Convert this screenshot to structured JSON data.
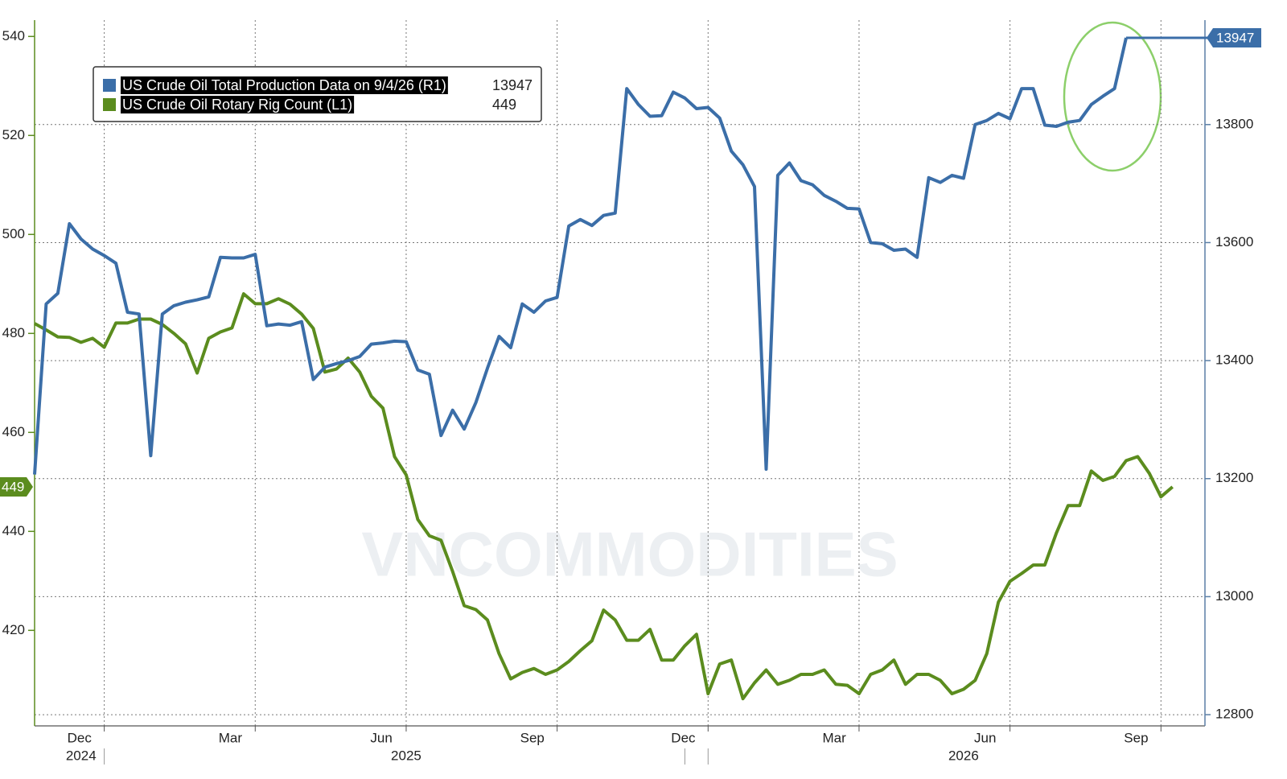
{
  "chart_data": {
    "type": "line",
    "watermark": "VNCOMMODITIES",
    "categories": [
      null,
      null,
      null,
      null,
      "Dec",
      null,
      null,
      null,
      null,
      null,
      null,
      null,
      null,
      null,
      null,
      null,
      null,
      "Mar",
      null,
      null,
      null,
      null,
      null,
      null,
      null,
      null,
      null,
      null,
      null,
      null,
      "Jun",
      null,
      null,
      null,
      null,
      null,
      null,
      null,
      null,
      null,
      null,
      null,
      null,
      "Sep",
      null,
      null,
      null,
      null,
      null,
      null,
      null,
      null,
      null,
      null,
      null,
      null,
      "Dec",
      null,
      null,
      null,
      null,
      null,
      null,
      null,
      null,
      null,
      null,
      null,
      null,
      "Mar",
      null,
      null,
      null,
      null,
      null,
      null,
      null,
      null,
      null,
      null,
      null,
      null,
      "Jun",
      null,
      null,
      null,
      null,
      null,
      null,
      null,
      null,
      null,
      null,
      null,
      null,
      "Sep",
      null,
      null,
      null
    ],
    "category_years": [
      null,
      null,
      null,
      null,
      "2024",
      null,
      null,
      null,
      null,
      null,
      null,
      null,
      null,
      null,
      null,
      null,
      null,
      null,
      null,
      null,
      null,
      null,
      null,
      null,
      null,
      null,
      null,
      null,
      null,
      null,
      null,
      null,
      "2025",
      null,
      null,
      null,
      null,
      null,
      null,
      null,
      null,
      null,
      null,
      null,
      null,
      null,
      null,
      null,
      null,
      null,
      null,
      null,
      null,
      null,
      null,
      null,
      null,
      null,
      null,
      null,
      null,
      null,
      null,
      null,
      null,
      null,
      null,
      null,
      null,
      null,
      null,
      null,
      null,
      null,
      null,
      null,
      null,
      null,
      null,
      null,
      "2026",
      null,
      null,
      null,
      null,
      null,
      null,
      null,
      null,
      null,
      null,
      null,
      null,
      null,
      null,
      null,
      null,
      null,
      null
    ],
    "series": [
      {
        "name": "US Crude Oil Total Production Data on 9/4/26 (R1)",
        "color": "#3b6ea8",
        "axis": "y2",
        "values": [
          13207,
          13496,
          13514,
          13632,
          13606,
          13589,
          13578,
          13565,
          13482,
          13479,
          13239,
          13479,
          13493,
          13499,
          13503,
          13508,
          13575,
          13574,
          13574,
          13580,
          13459,
          13462,
          13460,
          13466,
          13368,
          13389,
          13395,
          13400,
          13407,
          13428,
          13430,
          13433,
          13432,
          13384,
          13377,
          13273,
          13316,
          13284,
          13329,
          13387,
          13441,
          13422,
          13496,
          13482,
          13501,
          13507,
          13628,
          13639,
          13629,
          13646,
          13650,
          13861,
          13834,
          13814,
          13815,
          13855,
          13845,
          13827,
          13829,
          13811,
          13755,
          13732,
          13695,
          13216,
          13714,
          13735,
          13705,
          13698,
          13680,
          13670,
          13658,
          13657,
          13600,
          13598,
          13587,
          13589,
          13575,
          13710,
          13702,
          13714,
          13709,
          13800,
          13807,
          13819,
          13810,
          13861,
          13861,
          13799,
          13797,
          13804,
          13807,
          13834,
          13848,
          13861,
          13947,
          null,
          null,
          null,
          null
        ]
      },
      {
        "name": "US Crude Oil Rotary Rig Count (L1)",
        "color": "#5b8c1e",
        "axis": "y",
        "values": [
          482.0,
          480.7,
          479.3,
          479.2,
          478.2,
          479.0,
          477.2,
          482.1,
          482.1,
          482.9,
          482.9,
          481.8,
          480.0,
          477.9,
          472.0,
          479.0,
          480.3,
          481.1,
          488.0,
          486.0,
          486.0,
          487.0,
          485.9,
          483.9,
          481.0,
          472.2,
          472.8,
          475.0,
          472.2,
          467.3,
          464.9,
          455.1,
          451.4,
          442.4,
          439.1,
          438.2,
          431.9,
          425.0,
          424.2,
          422.1,
          415.3,
          410.2,
          411.5,
          412.3,
          411.1,
          412.0,
          413.7,
          415.9,
          417.9,
          424.1,
          422.1,
          418.0,
          418.0,
          420.2,
          414.0,
          414.0,
          416.9,
          419.2,
          407.2,
          413.2,
          414.0,
          406.2,
          409.4,
          412.0,
          409.1,
          409.9,
          411.1,
          411.1,
          412.0,
          409.1,
          408.9,
          407.2,
          411.1,
          412.0,
          414.0,
          409.1,
          411.1,
          411.1,
          409.9,
          407.2,
          408.1,
          409.9,
          415.3,
          425.7,
          429.9,
          431.5,
          433.2,
          433.2,
          439.7,
          445.2,
          445.2,
          452.2,
          450.3,
          451.1,
          454.3,
          455.1,
          451.7,
          447.0,
          449
        ]
      }
    ],
    "ylim": [
      400.7,
      543.3
    ],
    "yticks": [
      420,
      440,
      460,
      480,
      500,
      520,
      540
    ],
    "y2lim": [
      12781,
      13977
    ],
    "y2ticks": [
      12800,
      13000,
      13200,
      13400,
      13600,
      13800
    ],
    "y2grid": true,
    "xgrid": true
  }
}
